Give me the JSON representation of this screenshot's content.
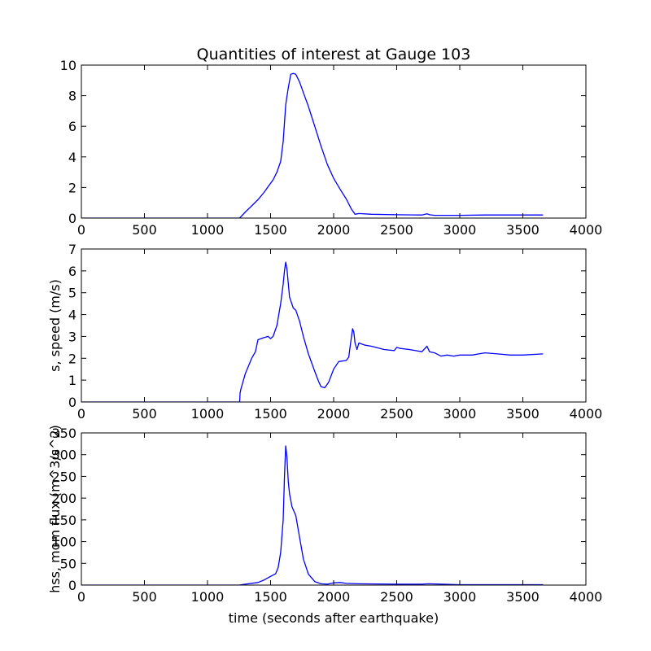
{
  "figure": {
    "title": "Quantities of interest at Gauge 103",
    "xlabel": "time (seconds after earthquake)",
    "line_color": "#0000ff"
  },
  "chart_data": [
    {
      "type": "line",
      "title": "Quantities of interest at Gauge 103",
      "xlabel": "",
      "ylabel": "",
      "xlim": [
        0,
        4000
      ],
      "ylim": [
        0,
        10
      ],
      "xticks": [
        0,
        500,
        1000,
        1500,
        2000,
        2500,
        3000,
        3500,
        4000
      ],
      "yticks": [
        0,
        2,
        4,
        6,
        8,
        10
      ],
      "grid": false,
      "series": [
        {
          "color": "#0000ff",
          "x": [
            0,
            1000,
            1255,
            1300,
            1350,
            1400,
            1450,
            1480,
            1520,
            1550,
            1580,
            1600,
            1620,
            1640,
            1660,
            1680,
            1700,
            1730,
            1760,
            1800,
            1850,
            1900,
            1950,
            2000,
            2050,
            2100,
            2140,
            2170,
            2200,
            2300,
            2500,
            2700,
            2740,
            2760,
            2800,
            3000,
            3200,
            3400,
            3660
          ],
          "y": [
            0,
            0,
            0,
            0.4,
            0.8,
            1.2,
            1.7,
            2.05,
            2.5,
            3.0,
            3.7,
            5.0,
            7.4,
            8.5,
            9.4,
            9.45,
            9.4,
            8.9,
            8.2,
            7.3,
            6.0,
            4.7,
            3.5,
            2.6,
            1.9,
            1.25,
            0.6,
            0.25,
            0.3,
            0.25,
            0.22,
            0.2,
            0.28,
            0.22,
            0.18,
            0.18,
            0.2,
            0.2,
            0.2
          ]
        }
      ]
    },
    {
      "type": "line",
      "xlabel": "",
      "ylabel": "s, speed (m/s)",
      "xlim": [
        0,
        4000
      ],
      "ylim": [
        0,
        7
      ],
      "xticks": [
        0,
        500,
        1000,
        1500,
        2000,
        2500,
        3000,
        3500,
        4000
      ],
      "yticks": [
        0,
        1,
        2,
        3,
        4,
        5,
        6,
        7
      ],
      "grid": false,
      "series": [
        {
          "color": "#0000ff",
          "x": [
            0,
            1000,
            1255,
            1258,
            1265,
            1300,
            1350,
            1380,
            1400,
            1450,
            1480,
            1500,
            1520,
            1550,
            1580,
            1600,
            1610,
            1620,
            1630,
            1650,
            1680,
            1700,
            1730,
            1760,
            1800,
            1850,
            1880,
            1900,
            1930,
            1960,
            2000,
            2040,
            2100,
            2120,
            2130,
            2150,
            2160,
            2170,
            2185,
            2200,
            2250,
            2300,
            2400,
            2480,
            2500,
            2530,
            2600,
            2700,
            2740,
            2760,
            2800,
            2850,
            2900,
            2950,
            3000,
            3100,
            3150,
            3200,
            3300,
            3400,
            3500,
            3660
          ],
          "y": [
            0,
            0,
            0,
            0.4,
            0.6,
            1.3,
            2.0,
            2.3,
            2.85,
            2.95,
            3.0,
            2.9,
            3.0,
            3.5,
            4.5,
            5.4,
            6.0,
            6.4,
            6.1,
            4.8,
            4.3,
            4.2,
            3.7,
            3.0,
            2.2,
            1.4,
            0.95,
            0.7,
            0.65,
            0.9,
            1.5,
            1.85,
            1.9,
            2.05,
            2.5,
            3.35,
            3.2,
            2.7,
            2.4,
            2.7,
            2.6,
            2.55,
            2.4,
            2.35,
            2.5,
            2.45,
            2.4,
            2.3,
            2.55,
            2.3,
            2.25,
            2.1,
            2.15,
            2.1,
            2.15,
            2.15,
            2.2,
            2.25,
            2.2,
            2.15,
            2.15,
            2.2
          ]
        }
      ]
    },
    {
      "type": "line",
      "xlabel": "time (seconds after earthquake)",
      "ylabel": "hss, mom flux (m^3/s^2)",
      "xlim": [
        0,
        4000
      ],
      "ylim": [
        0,
        350
      ],
      "xticks": [
        0,
        500,
        1000,
        1500,
        2000,
        2500,
        3000,
        3500,
        4000
      ],
      "yticks": [
        0,
        50,
        100,
        150,
        200,
        250,
        300,
        350
      ],
      "grid": false,
      "series": [
        {
          "color": "#0000ff",
          "x": [
            0,
            1000,
            1250,
            1300,
            1400,
            1450,
            1500,
            1540,
            1560,
            1580,
            1600,
            1610,
            1620,
            1630,
            1640,
            1650,
            1670,
            1700,
            1730,
            1760,
            1800,
            1850,
            1900,
            1950,
            2000,
            2050,
            2100,
            2200,
            2500,
            2700,
            2750,
            3000,
            3660
          ],
          "y": [
            0,
            0,
            0,
            2,
            6,
            12,
            20,
            26,
            40,
            75,
            150,
            250,
            320,
            295,
            240,
            210,
            180,
            160,
            110,
            60,
            25,
            8,
            3,
            2,
            5,
            6,
            4,
            3,
            2,
            2,
            3,
            1,
            1
          ]
        }
      ]
    }
  ]
}
